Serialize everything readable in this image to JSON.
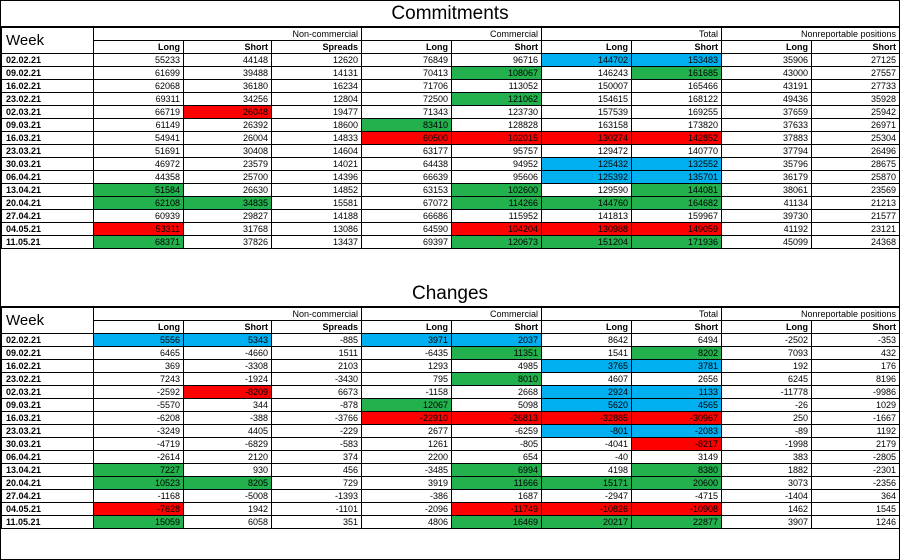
{
  "sections": [
    {
      "title": "Commitments",
      "headers": {
        "week": "Week",
        "groups": [
          "Non-commercial",
          "Commercial",
          "Total",
          "Nonreportable positions"
        ],
        "sub": [
          "Long",
          "Short",
          "Spreads",
          "Long",
          "Short",
          "Long",
          "Short",
          "Long",
          "Short"
        ]
      },
      "rows": [
        {
          "week": "02.02.21",
          "v": [
            "55233",
            "44148",
            "12620",
            "76849",
            "96716",
            "144702",
            "153483",
            "35906",
            "27125"
          ],
          "c": [
            "",
            "",
            "",
            "",
            "",
            "blue",
            "blue",
            "",
            ""
          ]
        },
        {
          "week": "09.02.21",
          "v": [
            "61699",
            "39488",
            "14131",
            "70413",
            "108067",
            "146243",
            "161685",
            "43000",
            "27557"
          ],
          "c": [
            "",
            "",
            "",
            "",
            "green",
            "",
            "green",
            "",
            ""
          ]
        },
        {
          "week": "16.02.21",
          "v": [
            "62068",
            "36180",
            "16234",
            "71706",
            "113052",
            "150007",
            "165466",
            "43191",
            "27733"
          ],
          "c": [
            "",
            "",
            "",
            "",
            "",
            "",
            "",
            "",
            ""
          ]
        },
        {
          "week": "23.02.21",
          "v": [
            "69311",
            "34256",
            "12804",
            "72500",
            "121062",
            "154615",
            "168122",
            "49436",
            "35928"
          ],
          "c": [
            "",
            "",
            "",
            "",
            "green",
            "",
            "",
            "",
            ""
          ]
        },
        {
          "week": "02.03.21",
          "v": [
            "66719",
            "26048",
            "19477",
            "71343",
            "123730",
            "157539",
            "169255",
            "37659",
            "25942"
          ],
          "c": [
            "",
            "red",
            "",
            "",
            "",
            "",
            "",
            "",
            ""
          ]
        },
        {
          "week": "09.03.21",
          "v": [
            "61149",
            "26392",
            "18600",
            "83410",
            "128828",
            "163158",
            "173820",
            "37633",
            "26971"
          ],
          "c": [
            "",
            "",
            "",
            "green",
            "",
            "",
            "",
            "",
            ""
          ]
        },
        {
          "week": "16.03.21",
          "v": [
            "54941",
            "26004",
            "14833",
            "60500",
            "102015",
            "130274",
            "142852",
            "37883",
            "25304"
          ],
          "c": [
            "",
            "",
            "",
            "red",
            "red",
            "red",
            "red",
            "",
            ""
          ]
        },
        {
          "week": "23.03.21",
          "v": [
            "51691",
            "30408",
            "14604",
            "63177",
            "95757",
            "129472",
            "140770",
            "37794",
            "26496"
          ],
          "c": [
            "",
            "",
            "",
            "",
            "",
            "",
            "",
            "",
            ""
          ]
        },
        {
          "week": "30.03.21",
          "v": [
            "46972",
            "23579",
            "14021",
            "64438",
            "94952",
            "125432",
            "132552",
            "35796",
            "28675"
          ],
          "c": [
            "",
            "",
            "",
            "",
            "",
            "blue",
            "blue",
            "",
            ""
          ]
        },
        {
          "week": "06.04.21",
          "v": [
            "44358",
            "25700",
            "14396",
            "66639",
            "95606",
            "125392",
            "135701",
            "36179",
            "25870"
          ],
          "c": [
            "",
            "",
            "",
            "",
            "",
            "blue",
            "blue",
            "",
            ""
          ]
        },
        {
          "week": "13.04.21",
          "v": [
            "51584",
            "26630",
            "14852",
            "63153",
            "102600",
            "129590",
            "144081",
            "38061",
            "23569"
          ],
          "c": [
            "green",
            "",
            "",
            "",
            "green",
            "",
            "green",
            "",
            ""
          ]
        },
        {
          "week": "20.04.21",
          "v": [
            "62108",
            "34835",
            "15581",
            "67072",
            "114266",
            "144760",
            "164682",
            "41134",
            "21213"
          ],
          "c": [
            "green",
            "green",
            "",
            "",
            "green",
            "green",
            "green",
            "",
            ""
          ]
        },
        {
          "week": "27.04.21",
          "v": [
            "60939",
            "29827",
            "14188",
            "66686",
            "115952",
            "141813",
            "159967",
            "39730",
            "21577"
          ],
          "c": [
            "",
            "",
            "",
            "",
            "",
            "",
            "",
            "",
            ""
          ]
        },
        {
          "week": "04.05.21",
          "v": [
            "53311",
            "31768",
            "13086",
            "64590",
            "104204",
            "130988",
            "149059",
            "41192",
            "23121"
          ],
          "c": [
            "red",
            "",
            "",
            "",
            "red",
            "red",
            "red",
            "",
            ""
          ]
        },
        {
          "week": "11.05.21",
          "v": [
            "68371",
            "37826",
            "13437",
            "69397",
            "120673",
            "151204",
            "171936",
            "45099",
            "24368"
          ],
          "c": [
            "green",
            "",
            "",
            "",
            "green",
            "green",
            "green",
            "",
            ""
          ]
        }
      ]
    },
    {
      "title": "Changes",
      "headers": {
        "week": "Week",
        "groups": [
          "Non-commercial",
          "Commercial",
          "Total",
          "Nonreportable positions"
        ],
        "sub": [
          "Long",
          "Short",
          "Spreads",
          "Long",
          "Short",
          "Long",
          "Short",
          "Long",
          "Short"
        ]
      },
      "rows": [
        {
          "week": "02.02.21",
          "v": [
            "5556",
            "5343",
            "-885",
            "3971",
            "2037",
            "8642",
            "6494",
            "-2502",
            "-353"
          ],
          "c": [
            "blue",
            "blue",
            "",
            "blue",
            "blue",
            "",
            "",
            "",
            ""
          ]
        },
        {
          "week": "09.02.21",
          "v": [
            "6465",
            "-4660",
            "1511",
            "-6435",
            "11351",
            "1541",
            "8202",
            "7093",
            "432"
          ],
          "c": [
            "",
            "",
            "",
            "",
            "green",
            "",
            "green",
            "",
            ""
          ]
        },
        {
          "week": "16.02.21",
          "v": [
            "369",
            "-3308",
            "2103",
            "1293",
            "4985",
            "3765",
            "3781",
            "192",
            "176"
          ],
          "c": [
            "",
            "",
            "",
            "",
            "",
            "blue",
            "blue",
            "",
            ""
          ]
        },
        {
          "week": "23.02.21",
          "v": [
            "7243",
            "-1924",
            "-3430",
            "795",
            "8010",
            "4607",
            "2656",
            "6245",
            "8196"
          ],
          "c": [
            "",
            "",
            "",
            "",
            "green",
            "",
            "",
            "",
            ""
          ]
        },
        {
          "week": "02.03.21",
          "v": [
            "-2592",
            "-8209",
            "6673",
            "-1158",
            "2668",
            "2924",
            "1133",
            "-11778",
            "-9986"
          ],
          "c": [
            "",
            "red",
            "",
            "",
            "",
            "blue",
            "blue",
            "",
            ""
          ]
        },
        {
          "week": "09.03.21",
          "v": [
            "-5570",
            "344",
            "-878",
            "12067",
            "5098",
            "5620",
            "4565",
            "-26",
            "1029"
          ],
          "c": [
            "",
            "",
            "",
            "green",
            "",
            "blue",
            "blue",
            "",
            ""
          ]
        },
        {
          "week": "16.03.21",
          "v": [
            "-6208",
            "-388",
            "-3766",
            "-22910",
            "-26813",
            "-32885",
            "-30967",
            "250",
            "-1667"
          ],
          "c": [
            "",
            "",
            "",
            "red",
            "red",
            "red",
            "red",
            "",
            ""
          ]
        },
        {
          "week": "23.03.21",
          "v": [
            "-3249",
            "4405",
            "-229",
            "2677",
            "-6259",
            "-801",
            "-2083",
            "-89",
            "1192"
          ],
          "c": [
            "",
            "",
            "",
            "",
            "",
            "blue",
            "blue",
            "",
            ""
          ]
        },
        {
          "week": "30.03.21",
          "v": [
            "-4719",
            "-6829",
            "-583",
            "1261",
            "-805",
            "-4041",
            "-8217",
            "-1998",
            "2179"
          ],
          "c": [
            "",
            "",
            "",
            "",
            "",
            "",
            "red",
            "",
            ""
          ]
        },
        {
          "week": "06.04.21",
          "v": [
            "-2614",
            "2120",
            "374",
            "2200",
            "654",
            "-40",
            "3149",
            "383",
            "-2805"
          ],
          "c": [
            "",
            "",
            "",
            "",
            "",
            "",
            "",
            "",
            ""
          ]
        },
        {
          "week": "13.04.21",
          "v": [
            "7227",
            "930",
            "456",
            "-3485",
            "6994",
            "4198",
            "8380",
            "1882",
            "-2301"
          ],
          "c": [
            "green",
            "",
            "",
            "",
            "green",
            "",
            "green",
            "",
            ""
          ]
        },
        {
          "week": "20.04.21",
          "v": [
            "10523",
            "8205",
            "729",
            "3919",
            "11666",
            "15171",
            "20600",
            "3073",
            "-2356"
          ],
          "c": [
            "green",
            "green",
            "",
            "",
            "green",
            "green",
            "green",
            "",
            ""
          ]
        },
        {
          "week": "27.04.21",
          "v": [
            "-1168",
            "-5008",
            "-1393",
            "-386",
            "1687",
            "-2947",
            "-4715",
            "-1404",
            "364"
          ],
          "c": [
            "",
            "",
            "",
            "",
            "",
            "",
            "",
            "",
            ""
          ]
        },
        {
          "week": "04.05.21",
          "v": [
            "-7628",
            "1942",
            "-1101",
            "-2096",
            "-11749",
            "-10826",
            "-10908",
            "1462",
            "1545"
          ],
          "c": [
            "red",
            "",
            "",
            "",
            "red",
            "red",
            "red",
            "",
            ""
          ]
        },
        {
          "week": "11.05.21",
          "v": [
            "15059",
            "6058",
            "351",
            "4806",
            "16469",
            "20217",
            "22877",
            "3907",
            "1246"
          ],
          "c": [
            "green",
            "",
            "",
            "",
            "green",
            "green",
            "green",
            "",
            ""
          ]
        }
      ]
    }
  ],
  "colors": {
    "green": "#22b14c",
    "red": "#ff0000",
    "blue": "#00b0f0"
  }
}
